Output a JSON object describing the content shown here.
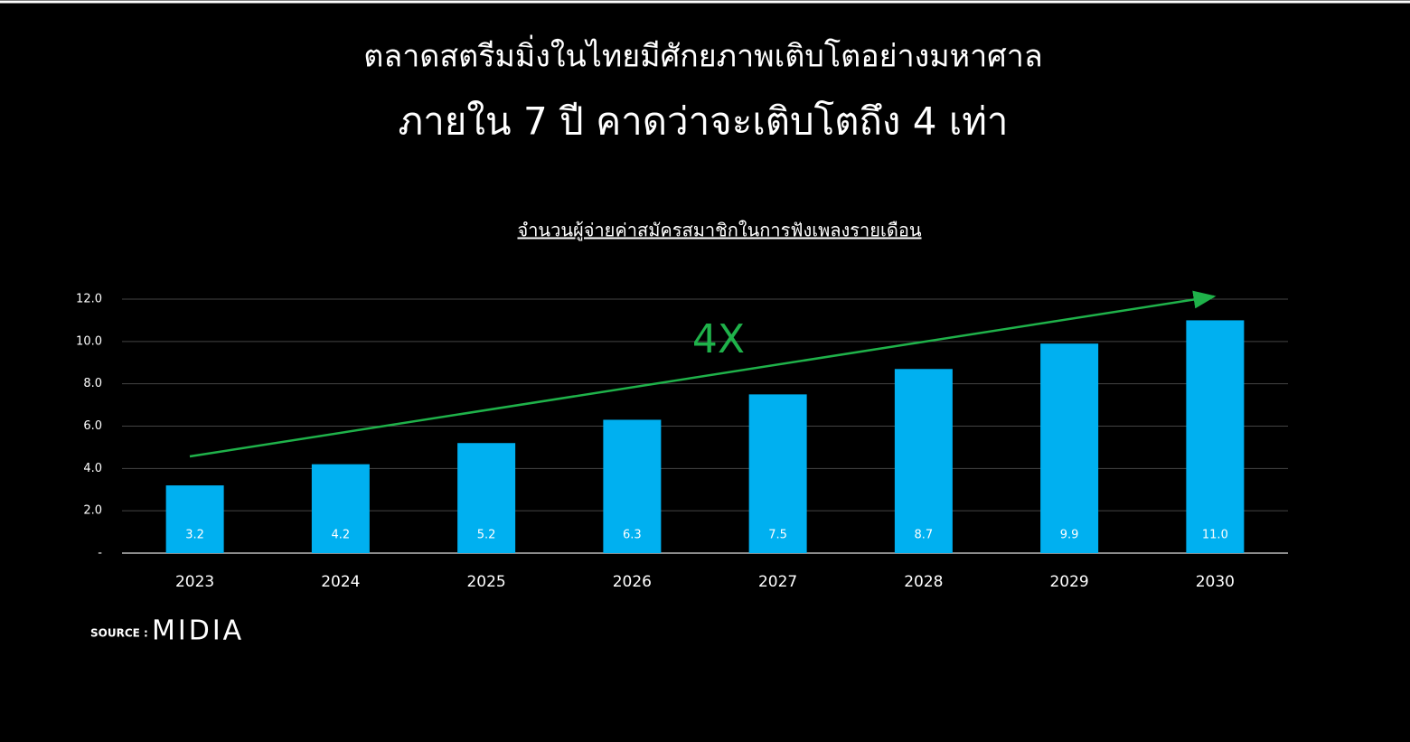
{
  "chart_data": {
    "type": "bar",
    "title": "ตลาดสตรีมมิ่งในไทยมีศักยภาพเติบโตอย่างมหาศาล",
    "subtitle": "ภายใน 7 ปี คาดว่าจะเติบโตถึง 4 เท่า",
    "chart_title": "จำนวนผู้จ่ายค่าสมัครสมาชิกในการฟังเพลงรายเดือน",
    "categories": [
      "2023",
      "2024",
      "2025",
      "2026",
      "2027",
      "2028",
      "2029",
      "2030"
    ],
    "values": [
      3.2,
      4.2,
      5.2,
      6.3,
      7.5,
      8.7,
      9.9,
      11.0
    ],
    "value_labels": [
      "3.2",
      "4.2",
      "5.2",
      "6.3",
      "7.5",
      "8.7",
      "9.9",
      "11.0"
    ],
    "color": "#00b0f0",
    "ylim": [
      0,
      12
    ],
    "yticks": [
      {
        "value": 0,
        "label": "-"
      },
      {
        "value": 2,
        "label": "2.0"
      },
      {
        "value": 4,
        "label": "4.0"
      },
      {
        "value": 6,
        "label": "6.0"
      },
      {
        "value": 8,
        "label": "8.0"
      },
      {
        "value": 10,
        "label": "10.0"
      },
      {
        "value": 12,
        "label": "12.0"
      }
    ],
    "grid": true,
    "annotations": [
      "4X"
    ],
    "source_label": "SOURCE :",
    "source": "MIDIA"
  }
}
